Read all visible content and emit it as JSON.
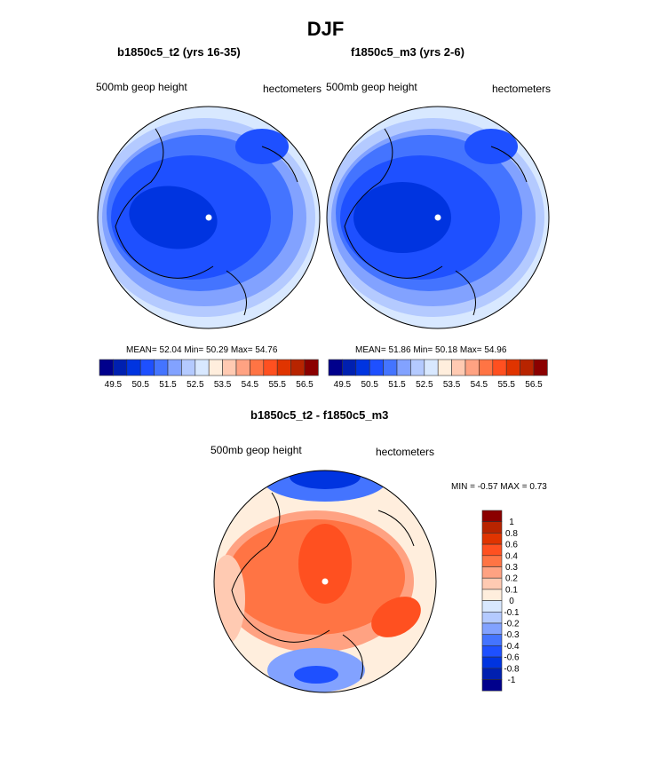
{
  "figure_title": "DJF",
  "panels": [
    {
      "title": "b1850c5_t2 (yrs 16-35)",
      "left_label": "500mb geop height",
      "right_label": "hectometers",
      "stats": "MEAN=  52.04  Min=  50.29  Max=  54.76"
    },
    {
      "title": "f1850c5_m3 (yrs 2-6)",
      "left_label": "500mb geop height",
      "right_label": "hectometers",
      "stats": "MEAN=  51.86  Min=  50.18  Max=  54.96"
    },
    {
      "title": "b1850c5_t2 - f1850c5_m3",
      "left_label": "500mb geop height",
      "right_label": "hectometers",
      "stats": "MIN =  -0.57 MAX =   0.73"
    }
  ],
  "colorbar_abs": {
    "labels": [
      "49.5",
      "50.5",
      "51.5",
      "52.5",
      "53.5",
      "54.5",
      "55.5",
      "56.5"
    ]
  },
  "colorbar_diff": {
    "labels": [
      "1",
      "0.8",
      "0.6",
      "0.4",
      "0.3",
      "0.2",
      "0.1",
      "0",
      "-0.1",
      "-0.2",
      "-0.3",
      "-0.4",
      "-0.6",
      "-0.8",
      "-1"
    ]
  },
  "colors": [
    "#00008c",
    "#0020b0",
    "#0034e0",
    "#1e50ff",
    "#4474ff",
    "#82a2ff",
    "#b4caff",
    "#d8e8ff",
    "#ffeedd",
    "#ffcab2",
    "#ffa282",
    "#ff7444",
    "#ff5020",
    "#e03400",
    "#b82400",
    "#8b0000"
  ]
}
